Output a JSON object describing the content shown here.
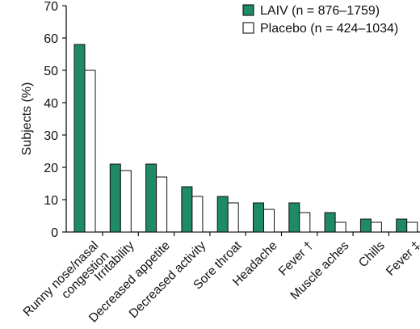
{
  "chart_data": {
    "type": "bar",
    "title": "",
    "xlabel": "",
    "ylabel": "Subjects (%)",
    "ylim": [
      0,
      70
    ],
    "yticks": [
      0,
      10,
      20,
      30,
      40,
      50,
      60,
      70
    ],
    "grid": false,
    "legend_position": "top-right",
    "categories": [
      [
        "Runny nose/nasal",
        "congestion"
      ],
      [
        "Irritability"
      ],
      [
        "Decreased appetite"
      ],
      [
        "Decreased activity"
      ],
      [
        "Sore throat"
      ],
      [
        "Headache"
      ],
      [
        "Fever †"
      ],
      [
        "Muscle aches"
      ],
      [
        "Chills"
      ],
      [
        "Fever ‡"
      ]
    ],
    "series": [
      {
        "name": "LAIV (n = 876–1759)",
        "color": "#1e8a66",
        "values": [
          58,
          21,
          21,
          14,
          11,
          9,
          9,
          6,
          4,
          4
        ]
      },
      {
        "name": "Placebo (n = 424–1034)",
        "color": "#ffffff",
        "values": [
          50,
          19,
          17,
          11,
          9,
          7,
          6,
          3,
          3,
          3
        ]
      }
    ]
  }
}
